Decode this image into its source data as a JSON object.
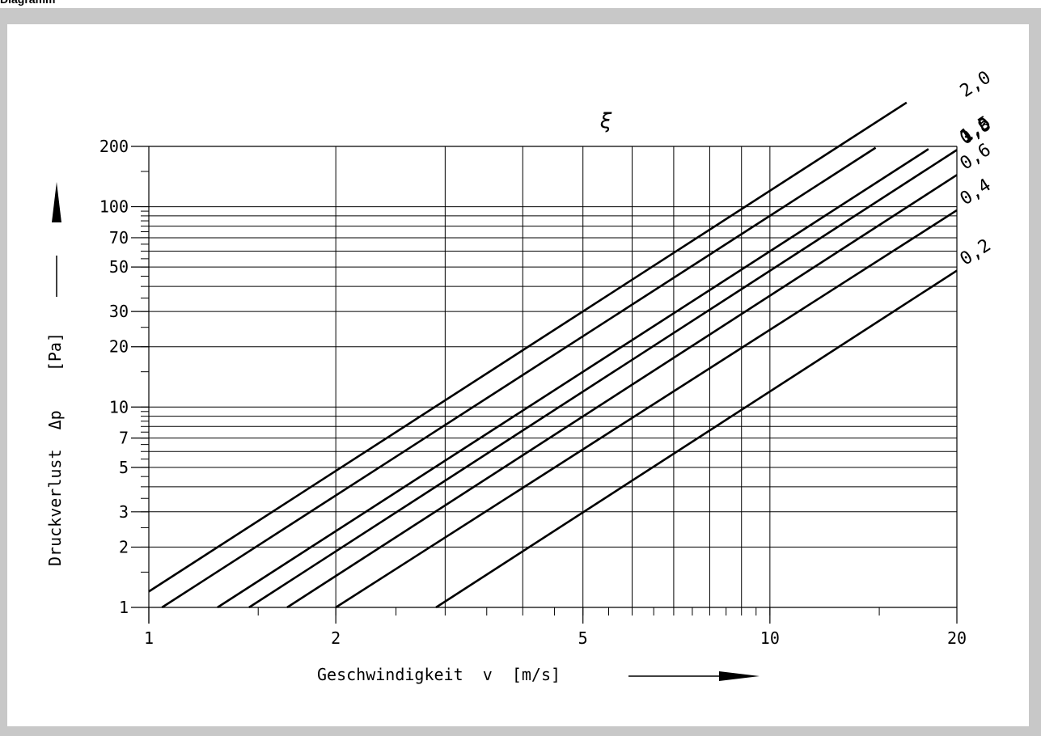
{
  "caption": "Diagramm",
  "chart_data": {
    "type": "line",
    "x_scale": "log",
    "y_scale": "log",
    "xlim": [
      1,
      20
    ],
    "ylim": [
      1,
      200
    ],
    "x_ticks": [
      1,
      2,
      5,
      10,
      20
    ],
    "x_tick_labels": [
      "1",
      "2",
      "5",
      "10",
      "20"
    ],
    "y_ticks": [
      1,
      2,
      3,
      5,
      7,
      10,
      20,
      30,
      50,
      70,
      100,
      200
    ],
    "y_tick_labels": [
      "1",
      "2",
      "3",
      "5",
      "7",
      "10",
      "20",
      "30",
      "50",
      "70",
      "100",
      "200"
    ],
    "x_gridlines": [
      2,
      3,
      4,
      5,
      6,
      7,
      8,
      9,
      10
    ],
    "y_gridlines": [
      2,
      3,
      4,
      5,
      6,
      7,
      8,
      9,
      10,
      20,
      30,
      40,
      50,
      60,
      70,
      80,
      90,
      100
    ],
    "xlabel": "Geschwindigkeit  v  [m/s]",
    "ylabel": "Druckverlust  Δp    [Pa]",
    "family_symbol": "ξ",
    "series": [
      {
        "name": "2,0",
        "zeta": 2.0,
        "x": [
          1.0,
          16.6
        ],
        "y": [
          1.2,
          331
        ]
      },
      {
        "name": "1,5",
        "zeta": 1.5,
        "x": [
          1.05,
          14.8
        ],
        "y": [
          1.0,
          197
        ]
      },
      {
        "name": "1,0",
        "zeta": 1.0,
        "x": [
          1.29,
          18.0
        ],
        "y": [
          1.0,
          194
        ]
      },
      {
        "name": "0,8",
        "zeta": 0.8,
        "x": [
          1.45,
          20.0
        ],
        "y": [
          1.0,
          192
        ]
      },
      {
        "name": "0,6",
        "zeta": 0.6,
        "x": [
          1.67,
          20.0
        ],
        "y": [
          1.0,
          144
        ]
      },
      {
        "name": "0,4",
        "zeta": 0.4,
        "x": [
          2.0,
          20.0
        ],
        "y": [
          1.0,
          96
        ]
      },
      {
        "name": "0,2",
        "zeta": 0.2,
        "x": [
          2.9,
          20.0
        ],
        "y": [
          1.0,
          48
        ]
      }
    ]
  }
}
